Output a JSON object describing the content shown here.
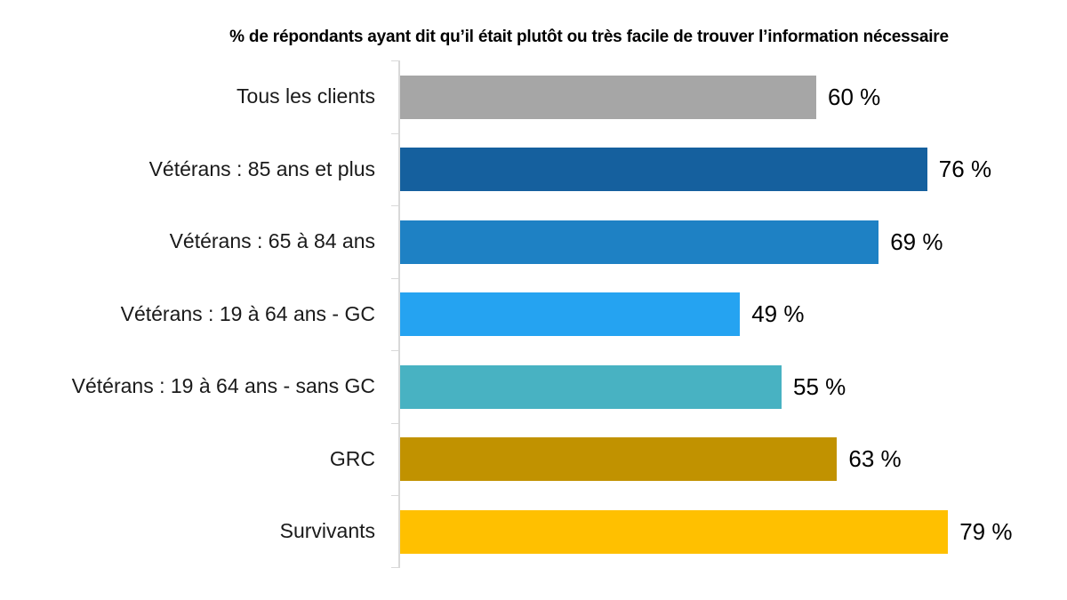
{
  "chart_data": {
    "type": "bar",
    "orientation": "horizontal",
    "title": "% de répondants ayant dit qu’il était plutôt ou très facile de trouver l’information nécessaire",
    "categories": [
      "Tous les clients",
      "Vétérans : 85 ans et plus",
      "Vétérans : 65 à 84 ans",
      "Vétérans : 19 à 64 ans - GC",
      "Vétérans : 19 à 64 ans - sans GC",
      "GRC",
      "Survivants"
    ],
    "values": [
      60,
      76,
      69,
      49,
      55,
      63,
      79
    ],
    "value_labels": [
      "60 %",
      "76 %",
      "69 %",
      "49 %",
      "55 %",
      "63 %",
      "79 %"
    ],
    "bar_colors": [
      "#A6A6A6",
      "#15609E",
      "#1E81C4",
      "#25A3F1",
      "#48B2C2",
      "#C19200",
      "#FFC000"
    ],
    "xlim": [
      0,
      100
    ],
    "grid": false,
    "legend": null,
    "axis_line_color": "#D9D9D9",
    "title_color": "#000000"
  }
}
